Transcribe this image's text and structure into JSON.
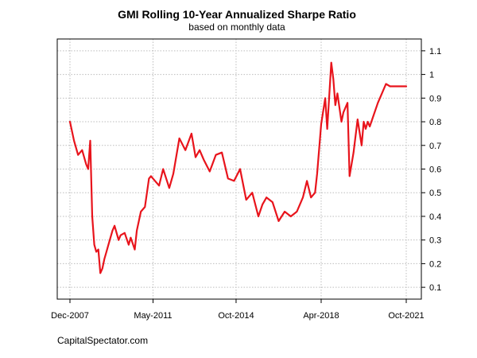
{
  "chart_data": {
    "type": "line",
    "title": "GMI Rolling 10-Year Annualized Sharpe Ratio",
    "subtitle": "based on monthly data",
    "xlabel": "",
    "ylabel": "",
    "x_tick_labels": [
      "Dec-2007",
      "May-2011",
      "Oct-2014",
      "Apr-2018",
      "Oct-2021"
    ],
    "y_ticks": [
      0.1,
      0.2,
      0.3,
      0.4,
      0.5,
      0.6,
      0.7,
      0.8,
      0.9,
      1,
      1.1
    ],
    "y_tick_labels": [
      "0.1",
      "0.2",
      "0.3",
      "0.4",
      "0.5",
      "0.6",
      "0.7",
      "0.8",
      "0.9",
      "1",
      "1.1"
    ],
    "xlim": [
      "Dec-2007",
      "Oct-2021"
    ],
    "ylim": [
      0.05,
      1.15
    ],
    "y_axis_side": "right",
    "grid": true,
    "line_color": "#e8141c",
    "series": [
      {
        "x": [
          "Dec-2007",
          "Feb-2008",
          "Apr-2008",
          "Jun-2008",
          "Aug-2008",
          "Sep-2008",
          "Oct-2008",
          "Nov-2008",
          "Dec-2008",
          "Jan-2009",
          "Feb-2009",
          "Mar-2009",
          "Apr-2009",
          "May-2009",
          "Jun-2009",
          "Jul-2009",
          "Sep-2009",
          "Oct-2009",
          "Dec-2009",
          "Jan-2010",
          "Mar-2010",
          "May-2010",
          "Jun-2010",
          "Aug-2010",
          "Sep-2010",
          "Nov-2010",
          "Jan-2011",
          "Mar-2011",
          "Apr-2011",
          "Jun-2011",
          "Aug-2011",
          "Oct-2011",
          "Jan-2012",
          "Mar-2012",
          "Jun-2012",
          "Sep-2012",
          "Dec-2012",
          "Feb-2013",
          "Apr-2013",
          "Jun-2013",
          "Sep-2013",
          "Dec-2013",
          "Mar-2014",
          "Jun-2014",
          "Sep-2014",
          "Dec-2014",
          "Mar-2015",
          "Jun-2015",
          "Sep-2015",
          "Nov-2015",
          "Jan-2016",
          "Apr-2016",
          "Jul-2016",
          "Oct-2016",
          "Jan-2017",
          "Apr-2017",
          "Jul-2017",
          "Sep-2017",
          "Nov-2017",
          "Jan-2018",
          "Feb-2018",
          "Apr-2018",
          "Jun-2018",
          "Jul-2018",
          "Sep-2018",
          "Oct-2018",
          "Nov-2018",
          "Dec-2018",
          "Feb-2019",
          "Mar-2019",
          "May-2019",
          "Jun-2019",
          "Aug-2019",
          "Oct-2019",
          "Dec-2019",
          "Jan-2020",
          "Feb-2020",
          "Mar-2020",
          "Apr-2020",
          "Jun-2020",
          "Aug-2020",
          "Oct-2020",
          "Dec-2020",
          "Feb-2021",
          "Apr-2021",
          "Jun-2021",
          "Jul-2021",
          "Aug-2021",
          "Oct-2021"
        ],
        "values": [
          0.8,
          0.72,
          0.66,
          0.68,
          0.62,
          0.6,
          0.72,
          0.4,
          0.28,
          0.25,
          0.26,
          0.16,
          0.18,
          0.22,
          0.25,
          0.28,
          0.34,
          0.36,
          0.3,
          0.32,
          0.33,
          0.28,
          0.31,
          0.26,
          0.34,
          0.42,
          0.44,
          0.56,
          0.57,
          0.55,
          0.53,
          0.6,
          0.52,
          0.58,
          0.73,
          0.68,
          0.75,
          0.65,
          0.68,
          0.64,
          0.59,
          0.66,
          0.67,
          0.56,
          0.55,
          0.6,
          0.47,
          0.5,
          0.4,
          0.45,
          0.48,
          0.46,
          0.38,
          0.42,
          0.4,
          0.42,
          0.48,
          0.55,
          0.48,
          0.5,
          0.58,
          0.79,
          0.9,
          0.77,
          1.05,
          0.98,
          0.87,
          0.92,
          0.8,
          0.84,
          0.88,
          0.57,
          0.67,
          0.81,
          0.7,
          0.8,
          0.77,
          0.8,
          0.78,
          0.83,
          0.88,
          0.92,
          0.96,
          0.95,
          0.95,
          0.95,
          0.95,
          0.95,
          0.95
        ]
      }
    ]
  },
  "footer": {
    "source": "CapitalSpectator.com"
  }
}
